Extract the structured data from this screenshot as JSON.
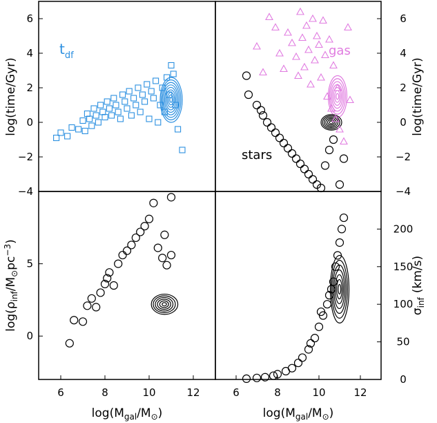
{
  "chart_data": [
    {
      "panel": "top-left",
      "type": "scatter",
      "xlim": [
        5,
        13
      ],
      "ylim": [
        -4,
        7
      ],
      "yticks": [
        "6",
        "4",
        "2",
        "0",
        "−2",
        "−4"
      ],
      "ylabel": "log(time/Gyr)",
      "label": {
        "main": "t",
        "sub": "df"
      },
      "colors": {
        "points": "#2b8fe0"
      },
      "series": [
        {
          "marker": "square",
          "points": [
            [
              5.8,
              -0.9
            ],
            [
              6.0,
              -0.6
            ],
            [
              6.3,
              -0.8
            ],
            [
              6.5,
              -0.3
            ],
            [
              6.8,
              -0.4
            ],
            [
              7.0,
              0.1
            ],
            [
              7.1,
              -0.5
            ],
            [
              7.2,
              0.5
            ],
            [
              7.3,
              0.2
            ],
            [
              7.4,
              -0.2
            ],
            [
              7.5,
              0.8
            ],
            [
              7.6,
              0.4
            ],
            [
              7.7,
              0.0
            ],
            [
              7.8,
              1.0
            ],
            [
              7.9,
              0.6
            ],
            [
              8.0,
              0.3
            ],
            [
              8.1,
              1.2
            ],
            [
              8.2,
              0.8
            ],
            [
              8.3,
              0.4
            ],
            [
              8.4,
              1.4
            ],
            [
              8.5,
              1.0
            ],
            [
              8.6,
              0.6
            ],
            [
              8.7,
              0.2
            ],
            [
              8.8,
              1.6
            ],
            [
              8.9,
              1.2
            ],
            [
              9.0,
              0.8
            ],
            [
              9.1,
              1.8
            ],
            [
              9.2,
              0.4
            ],
            [
              9.3,
              1.4
            ],
            [
              9.4,
              1.0
            ],
            [
              9.5,
              2.0
            ],
            [
              9.6,
              0.6
            ],
            [
              9.7,
              1.6
            ],
            [
              9.8,
              1.2
            ],
            [
              9.9,
              2.2
            ],
            [
              10.0,
              0.2
            ],
            [
              10.1,
              1.8
            ],
            [
              10.2,
              1.4
            ],
            [
              10.3,
              2.4
            ],
            [
              10.4,
              0.0
            ],
            [
              10.5,
              1.0
            ],
            [
              10.6,
              2.0
            ],
            [
              10.7,
              0.6
            ],
            [
              10.8,
              2.6
            ],
            [
              10.9,
              1.6
            ],
            [
              11.0,
              3.3
            ],
            [
              11.1,
              2.8
            ],
            [
              11.2,
              1.0
            ],
            [
              11.3,
              -0.4
            ],
            [
              11.5,
              -1.6
            ]
          ]
        }
      ],
      "contours": {
        "color": "#2b8fe0",
        "center": [
          11.0,
          1.3
        ],
        "spread": [
          1.0,
          2.6
        ],
        "levels": 9
      }
    },
    {
      "panel": "top-right",
      "type": "scatter",
      "xlim": [
        5,
        13
      ],
      "ylim": [
        -4,
        7
      ],
      "yticks": [
        "6",
        "4",
        "2",
        "0",
        "−2",
        "−4"
      ],
      "ylabel": "log(time/Gyr)",
      "annotations": [
        "gas",
        "stars"
      ],
      "colors": {
        "gas": "#e07be0",
        "stars": "#000000"
      },
      "series": [
        {
          "name": "gas",
          "marker": "triangle",
          "points": [
            [
              7.0,
              4.4
            ],
            [
              7.3,
              2.9
            ],
            [
              7.6,
              6.1
            ],
            [
              7.9,
              5.5
            ],
            [
              8.1,
              4.0
            ],
            [
              8.3,
              3.1
            ],
            [
              8.5,
              5.2
            ],
            [
              8.7,
              4.6
            ],
            [
              8.9,
              3.8
            ],
            [
              9.0,
              2.7
            ],
            [
              9.1,
              6.4
            ],
            [
              9.2,
              4.9
            ],
            [
              9.3,
              3.2
            ],
            [
              9.4,
              5.6
            ],
            [
              9.5,
              4.2
            ],
            [
              9.6,
              2.2
            ],
            [
              9.7,
              6.0
            ],
            [
              9.8,
              3.6
            ],
            [
              9.9,
              5.0
            ],
            [
              10.0,
              4.5
            ],
            [
              10.1,
              2.6
            ],
            [
              10.2,
              5.9
            ],
            [
              10.3,
              3.9
            ],
            [
              10.4,
              1.5
            ],
            [
              10.5,
              4.8
            ],
            [
              10.6,
              0.8
            ],
            [
              10.7,
              3.3
            ],
            [
              10.8,
              0.2
            ],
            [
              10.9,
              2.0
            ],
            [
              11.0,
              -0.4
            ],
            [
              11.2,
              -1.1
            ],
            [
              11.4,
              5.5
            ],
            [
              11.5,
              1.3
            ]
          ]
        },
        {
          "name": "stars",
          "marker": "circle",
          "points": [
            [
              6.5,
              2.7
            ],
            [
              6.6,
              1.6
            ],
            [
              7.0,
              1.0
            ],
            [
              7.2,
              0.7
            ],
            [
              7.3,
              0.4
            ],
            [
              7.5,
              0.0
            ],
            [
              7.7,
              -0.3
            ],
            [
              7.9,
              -0.6
            ],
            [
              8.1,
              -0.9
            ],
            [
              8.3,
              -1.2
            ],
            [
              8.5,
              -1.5
            ],
            [
              8.7,
              -1.8
            ],
            [
              8.9,
              -2.1
            ],
            [
              9.1,
              -2.4
            ],
            [
              9.3,
              -2.7
            ],
            [
              9.5,
              -3.0
            ],
            [
              9.7,
              -3.3
            ],
            [
              9.9,
              -3.6
            ],
            [
              10.1,
              -3.8
            ],
            [
              10.3,
              -2.5
            ],
            [
              10.5,
              -1.6
            ],
            [
              10.7,
              -1.0
            ],
            [
              11.0,
              -3.6
            ],
            [
              11.2,
              -2.1
            ]
          ]
        }
      ],
      "contours": [
        {
          "color": "#e07be0",
          "center": [
            10.9,
            1.5
          ],
          "spread": [
            0.9,
            2.4
          ],
          "levels": 7
        },
        {
          "color": "#000000",
          "center": [
            10.6,
            0.0
          ],
          "spread": [
            1.0,
            0.9
          ],
          "levels": 6
        }
      ]
    },
    {
      "panel": "bottom-left",
      "type": "scatter",
      "xlim": [
        5,
        13
      ],
      "ylim": [
        -3,
        10
      ],
      "xticks": [
        "6",
        "8",
        "10",
        "12"
      ],
      "yticks": [
        "5",
        "0"
      ],
      "xlabel": {
        "main": "log(M",
        "sub": "gal",
        "tail": "/M",
        "sym": "⊙",
        "close": ")"
      },
      "ylabel": {
        "main": "log(ρ",
        "sub": "inf",
        "tail": "/M",
        "sym": "⊙",
        "unit": "pc",
        "sup": "−3",
        "close": ")"
      },
      "series": [
        {
          "marker": "circle",
          "points": [
            [
              6.4,
              -0.5
            ],
            [
              6.6,
              1.1
            ],
            [
              7.0,
              1.0
            ],
            [
              7.2,
              2.1
            ],
            [
              7.4,
              2.6
            ],
            [
              7.6,
              2.0
            ],
            [
              7.8,
              3.0
            ],
            [
              8.0,
              3.6
            ],
            [
              8.1,
              4.0
            ],
            [
              8.2,
              4.4
            ],
            [
              8.4,
              3.5
            ],
            [
              8.6,
              5.0
            ],
            [
              8.8,
              5.6
            ],
            [
              9.0,
              5.9
            ],
            [
              9.2,
              6.3
            ],
            [
              9.4,
              6.8
            ],
            [
              9.6,
              7.2
            ],
            [
              9.8,
              7.6
            ],
            [
              10.0,
              8.1
            ],
            [
              10.2,
              9.2
            ],
            [
              10.4,
              6.1
            ],
            [
              10.6,
              5.4
            ],
            [
              10.8,
              4.9
            ],
            [
              11.0,
              5.6
            ],
            [
              11.0,
              9.6
            ],
            [
              10.7,
              7.0
            ]
          ]
        }
      ],
      "contours": {
        "color": "#000000",
        "center": [
          10.7,
          2.2
        ],
        "spread": [
          1.2,
          1.4
        ],
        "levels": 6
      }
    },
    {
      "panel": "bottom-right",
      "type": "scatter",
      "xlim": [
        5,
        13
      ],
      "ylim": [
        0,
        250
      ],
      "xticks": [
        "6",
        "8",
        "10",
        "12"
      ],
      "yticks": [
        "200",
        "150",
        "100",
        "50",
        "0"
      ],
      "xlabel": {
        "main": "log(M",
        "sub": "gal",
        "tail": "/M",
        "sym": "⊙",
        "close": ")"
      },
      "ylabel": {
        "main": "σ",
        "sub": "inf",
        "unit": "(km/s)"
      },
      "series": [
        {
          "marker": "circle",
          "points": [
            [
              6.5,
              1
            ],
            [
              7.0,
              2
            ],
            [
              7.4,
              3
            ],
            [
              7.8,
              5
            ],
            [
              8.0,
              7
            ],
            [
              8.4,
              11
            ],
            [
              8.7,
              15
            ],
            [
              9.0,
              22
            ],
            [
              9.2,
              29
            ],
            [
              9.5,
              40
            ],
            [
              9.8,
              55
            ],
            [
              10.0,
              70
            ],
            [
              10.2,
              85
            ],
            [
              10.4,
              100
            ],
            [
              10.5,
              112
            ],
            [
              10.6,
              120
            ],
            [
              10.7,
              130
            ],
            [
              10.8,
              150
            ],
            [
              10.9,
              165
            ],
            [
              11.0,
              182
            ],
            [
              11.1,
              200
            ],
            [
              11.2,
              215
            ],
            [
              10.1,
              90
            ],
            [
              9.6,
              48
            ]
          ]
        }
      ],
      "contours": {
        "color": "#000000",
        "center": [
          11.0,
          120
        ],
        "spread": [
          0.9,
          90
        ],
        "levels": 7
      }
    }
  ]
}
